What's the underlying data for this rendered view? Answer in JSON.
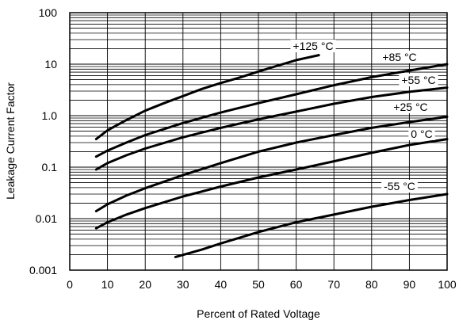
{
  "chart_data": {
    "type": "line",
    "title": "",
    "xlabel": "Percent of Rated Voltage",
    "ylabel": "Leakage Current Factor",
    "xlim": [
      0,
      100
    ],
    "ylim": [
      0.001,
      100
    ],
    "y_scale": "log",
    "grid": true,
    "x_ticks": [
      "0",
      "10",
      "20",
      "30",
      "40",
      "50",
      "60",
      "70",
      "80",
      "90",
      "100"
    ],
    "y_ticks": [
      "0.001",
      "0.01",
      "0.1",
      "1.0",
      "10",
      "100"
    ],
    "series": [
      {
        "name": "+125 °C",
        "x": [
          7,
          10,
          15,
          20,
          25,
          30,
          35,
          40,
          45,
          50,
          55,
          60,
          66
        ],
        "y": [
          0.35,
          0.52,
          0.82,
          1.25,
          1.75,
          2.4,
          3.3,
          4.3,
          5.5,
          7.2,
          9.3,
          12,
          15
        ]
      },
      {
        "name": "+85 °C",
        "x": [
          7,
          10,
          15,
          20,
          30,
          40,
          50,
          60,
          70,
          80,
          90,
          100
        ],
        "y": [
          0.16,
          0.21,
          0.3,
          0.42,
          0.72,
          1.15,
          1.75,
          2.6,
          3.9,
          5.6,
          7.5,
          10
        ]
      },
      {
        "name": "+55 °C",
        "x": [
          7,
          10,
          15,
          20,
          30,
          40,
          50,
          60,
          70,
          80,
          90,
          100
        ],
        "y": [
          0.09,
          0.12,
          0.17,
          0.23,
          0.38,
          0.58,
          0.85,
          1.2,
          1.7,
          2.3,
          2.9,
          3.5
        ]
      },
      {
        "name": "+25 °C",
        "x": [
          7,
          10,
          15,
          20,
          30,
          40,
          50,
          60,
          70,
          80,
          90,
          100
        ],
        "y": [
          0.014,
          0.019,
          0.028,
          0.039,
          0.07,
          0.12,
          0.2,
          0.3,
          0.42,
          0.58,
          0.75,
          0.95
        ]
      },
      {
        "name": "0 °C",
        "x": [
          7,
          10,
          15,
          20,
          30,
          40,
          50,
          60,
          70,
          80,
          90,
          100
        ],
        "y": [
          0.0065,
          0.0085,
          0.012,
          0.016,
          0.027,
          0.042,
          0.063,
          0.09,
          0.13,
          0.19,
          0.27,
          0.35
        ]
      },
      {
        "name": "-55 °C",
        "x": [
          28,
          35,
          40,
          50,
          60,
          70,
          80,
          90,
          100
        ],
        "y": [
          0.0018,
          0.0025,
          0.0033,
          0.0055,
          0.0085,
          0.012,
          0.017,
          0.023,
          0.03
        ]
      }
    ]
  }
}
